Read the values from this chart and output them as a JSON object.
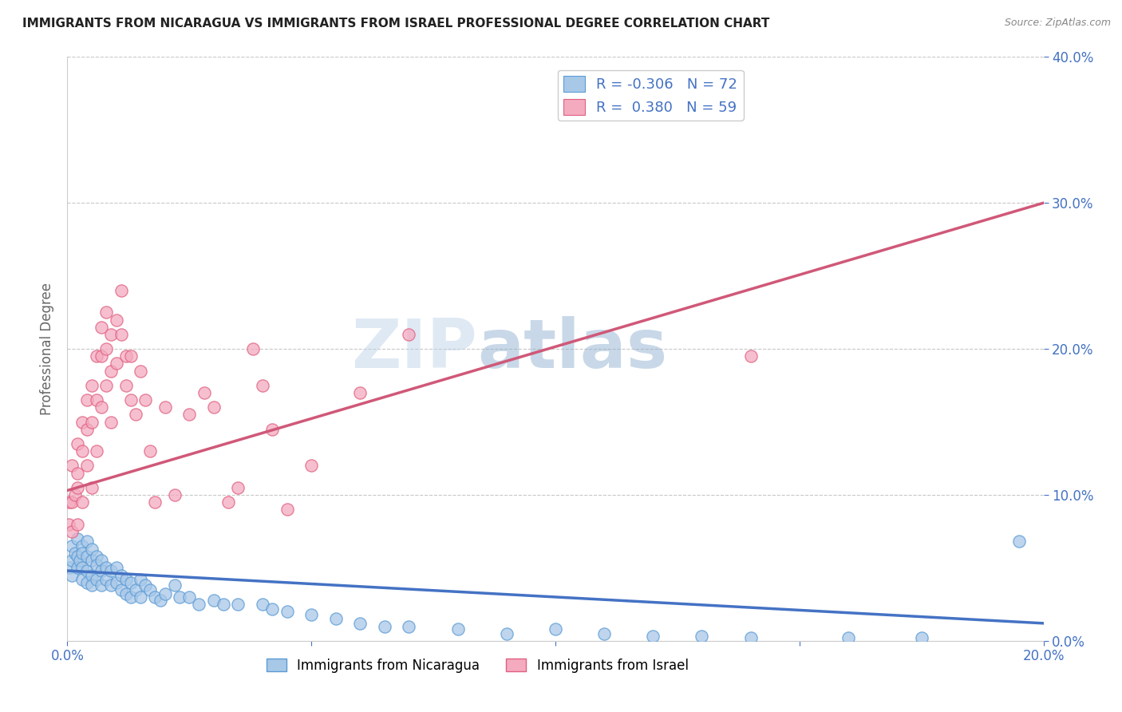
{
  "title": "IMMIGRANTS FROM NICARAGUA VS IMMIGRANTS FROM ISRAEL PROFESSIONAL DEGREE CORRELATION CHART",
  "source": "Source: ZipAtlas.com",
  "ylabel": "Professional Degree",
  "xlim": [
    0.0,
    0.2
  ],
  "ylim": [
    0.0,
    0.4
  ],
  "x_ticks": [
    0.0,
    0.05,
    0.1,
    0.15,
    0.2
  ],
  "x_tick_labels": [
    "0.0%",
    "",
    "",
    "",
    "20.0%"
  ],
  "y_ticks": [
    0.0,
    0.1,
    0.2,
    0.3,
    0.4
  ],
  "nicaragua_color": "#a8c8e8",
  "israel_color": "#f4aabf",
  "nicaragua_edge_color": "#5b9bd5",
  "israel_edge_color": "#e06080",
  "nicaragua_line_color": "#4472c4",
  "israel_line_color": "#d05878",
  "nicaragua_R": -0.306,
  "nicaragua_N": 72,
  "israel_R": 0.38,
  "israel_N": 59,
  "watermark_zip": "ZIP",
  "watermark_atlas": "atlas",
  "background_color": "#ffffff",
  "grid_color": "#c8c8c8",
  "tick_color": "#4472c4",
  "title_color": "#222222",
  "nicaragua_scatter_x": [
    0.0005,
    0.001,
    0.001,
    0.001,
    0.0015,
    0.002,
    0.002,
    0.002,
    0.0025,
    0.003,
    0.003,
    0.003,
    0.003,
    0.004,
    0.004,
    0.004,
    0.004,
    0.005,
    0.005,
    0.005,
    0.005,
    0.006,
    0.006,
    0.006,
    0.007,
    0.007,
    0.007,
    0.008,
    0.008,
    0.009,
    0.009,
    0.01,
    0.01,
    0.011,
    0.011,
    0.012,
    0.012,
    0.013,
    0.013,
    0.014,
    0.015,
    0.015,
    0.016,
    0.017,
    0.018,
    0.019,
    0.02,
    0.022,
    0.023,
    0.025,
    0.027,
    0.03,
    0.032,
    0.035,
    0.04,
    0.042,
    0.045,
    0.05,
    0.055,
    0.06,
    0.065,
    0.07,
    0.08,
    0.09,
    0.1,
    0.11,
    0.12,
    0.13,
    0.14,
    0.16,
    0.175,
    0.195
  ],
  "nicaragua_scatter_y": [
    0.05,
    0.065,
    0.055,
    0.045,
    0.06,
    0.07,
    0.058,
    0.05,
    0.055,
    0.065,
    0.06,
    0.05,
    0.042,
    0.068,
    0.058,
    0.048,
    0.04,
    0.063,
    0.055,
    0.045,
    0.038,
    0.058,
    0.052,
    0.042,
    0.055,
    0.048,
    0.038,
    0.05,
    0.042,
    0.048,
    0.038,
    0.05,
    0.04,
    0.045,
    0.035,
    0.042,
    0.032,
    0.04,
    0.03,
    0.035,
    0.042,
    0.03,
    0.038,
    0.035,
    0.03,
    0.028,
    0.032,
    0.038,
    0.03,
    0.03,
    0.025,
    0.028,
    0.025,
    0.025,
    0.025,
    0.022,
    0.02,
    0.018,
    0.015,
    0.012,
    0.01,
    0.01,
    0.008,
    0.005,
    0.008,
    0.005,
    0.003,
    0.003,
    0.002,
    0.002,
    0.002,
    0.068
  ],
  "israel_scatter_x": [
    0.0003,
    0.0005,
    0.001,
    0.001,
    0.001,
    0.0015,
    0.002,
    0.002,
    0.002,
    0.002,
    0.003,
    0.003,
    0.003,
    0.004,
    0.004,
    0.004,
    0.005,
    0.005,
    0.005,
    0.006,
    0.006,
    0.006,
    0.007,
    0.007,
    0.007,
    0.008,
    0.008,
    0.008,
    0.009,
    0.009,
    0.009,
    0.01,
    0.01,
    0.011,
    0.011,
    0.012,
    0.012,
    0.013,
    0.013,
    0.014,
    0.015,
    0.016,
    0.017,
    0.018,
    0.02,
    0.022,
    0.025,
    0.028,
    0.03,
    0.033,
    0.035,
    0.038,
    0.04,
    0.042,
    0.045,
    0.05,
    0.06,
    0.07,
    0.14
  ],
  "israel_scatter_y": [
    0.08,
    0.095,
    0.12,
    0.095,
    0.075,
    0.1,
    0.135,
    0.115,
    0.105,
    0.08,
    0.15,
    0.13,
    0.095,
    0.165,
    0.145,
    0.12,
    0.175,
    0.15,
    0.105,
    0.195,
    0.165,
    0.13,
    0.215,
    0.195,
    0.16,
    0.225,
    0.2,
    0.175,
    0.21,
    0.185,
    0.15,
    0.22,
    0.19,
    0.24,
    0.21,
    0.195,
    0.175,
    0.195,
    0.165,
    0.155,
    0.185,
    0.165,
    0.13,
    0.095,
    0.16,
    0.1,
    0.155,
    0.17,
    0.16,
    0.095,
    0.105,
    0.2,
    0.175,
    0.145,
    0.09,
    0.12,
    0.17,
    0.21,
    0.195
  ],
  "israel_trend_x0": 0.0,
  "israel_trend_y0": 0.103,
  "israel_trend_x1": 0.2,
  "israel_trend_y1": 0.3,
  "nicaragua_trend_x0": 0.0,
  "nicaragua_trend_y0": 0.048,
  "nicaragua_trend_x1": 0.2,
  "nicaragua_trend_y1": 0.012
}
